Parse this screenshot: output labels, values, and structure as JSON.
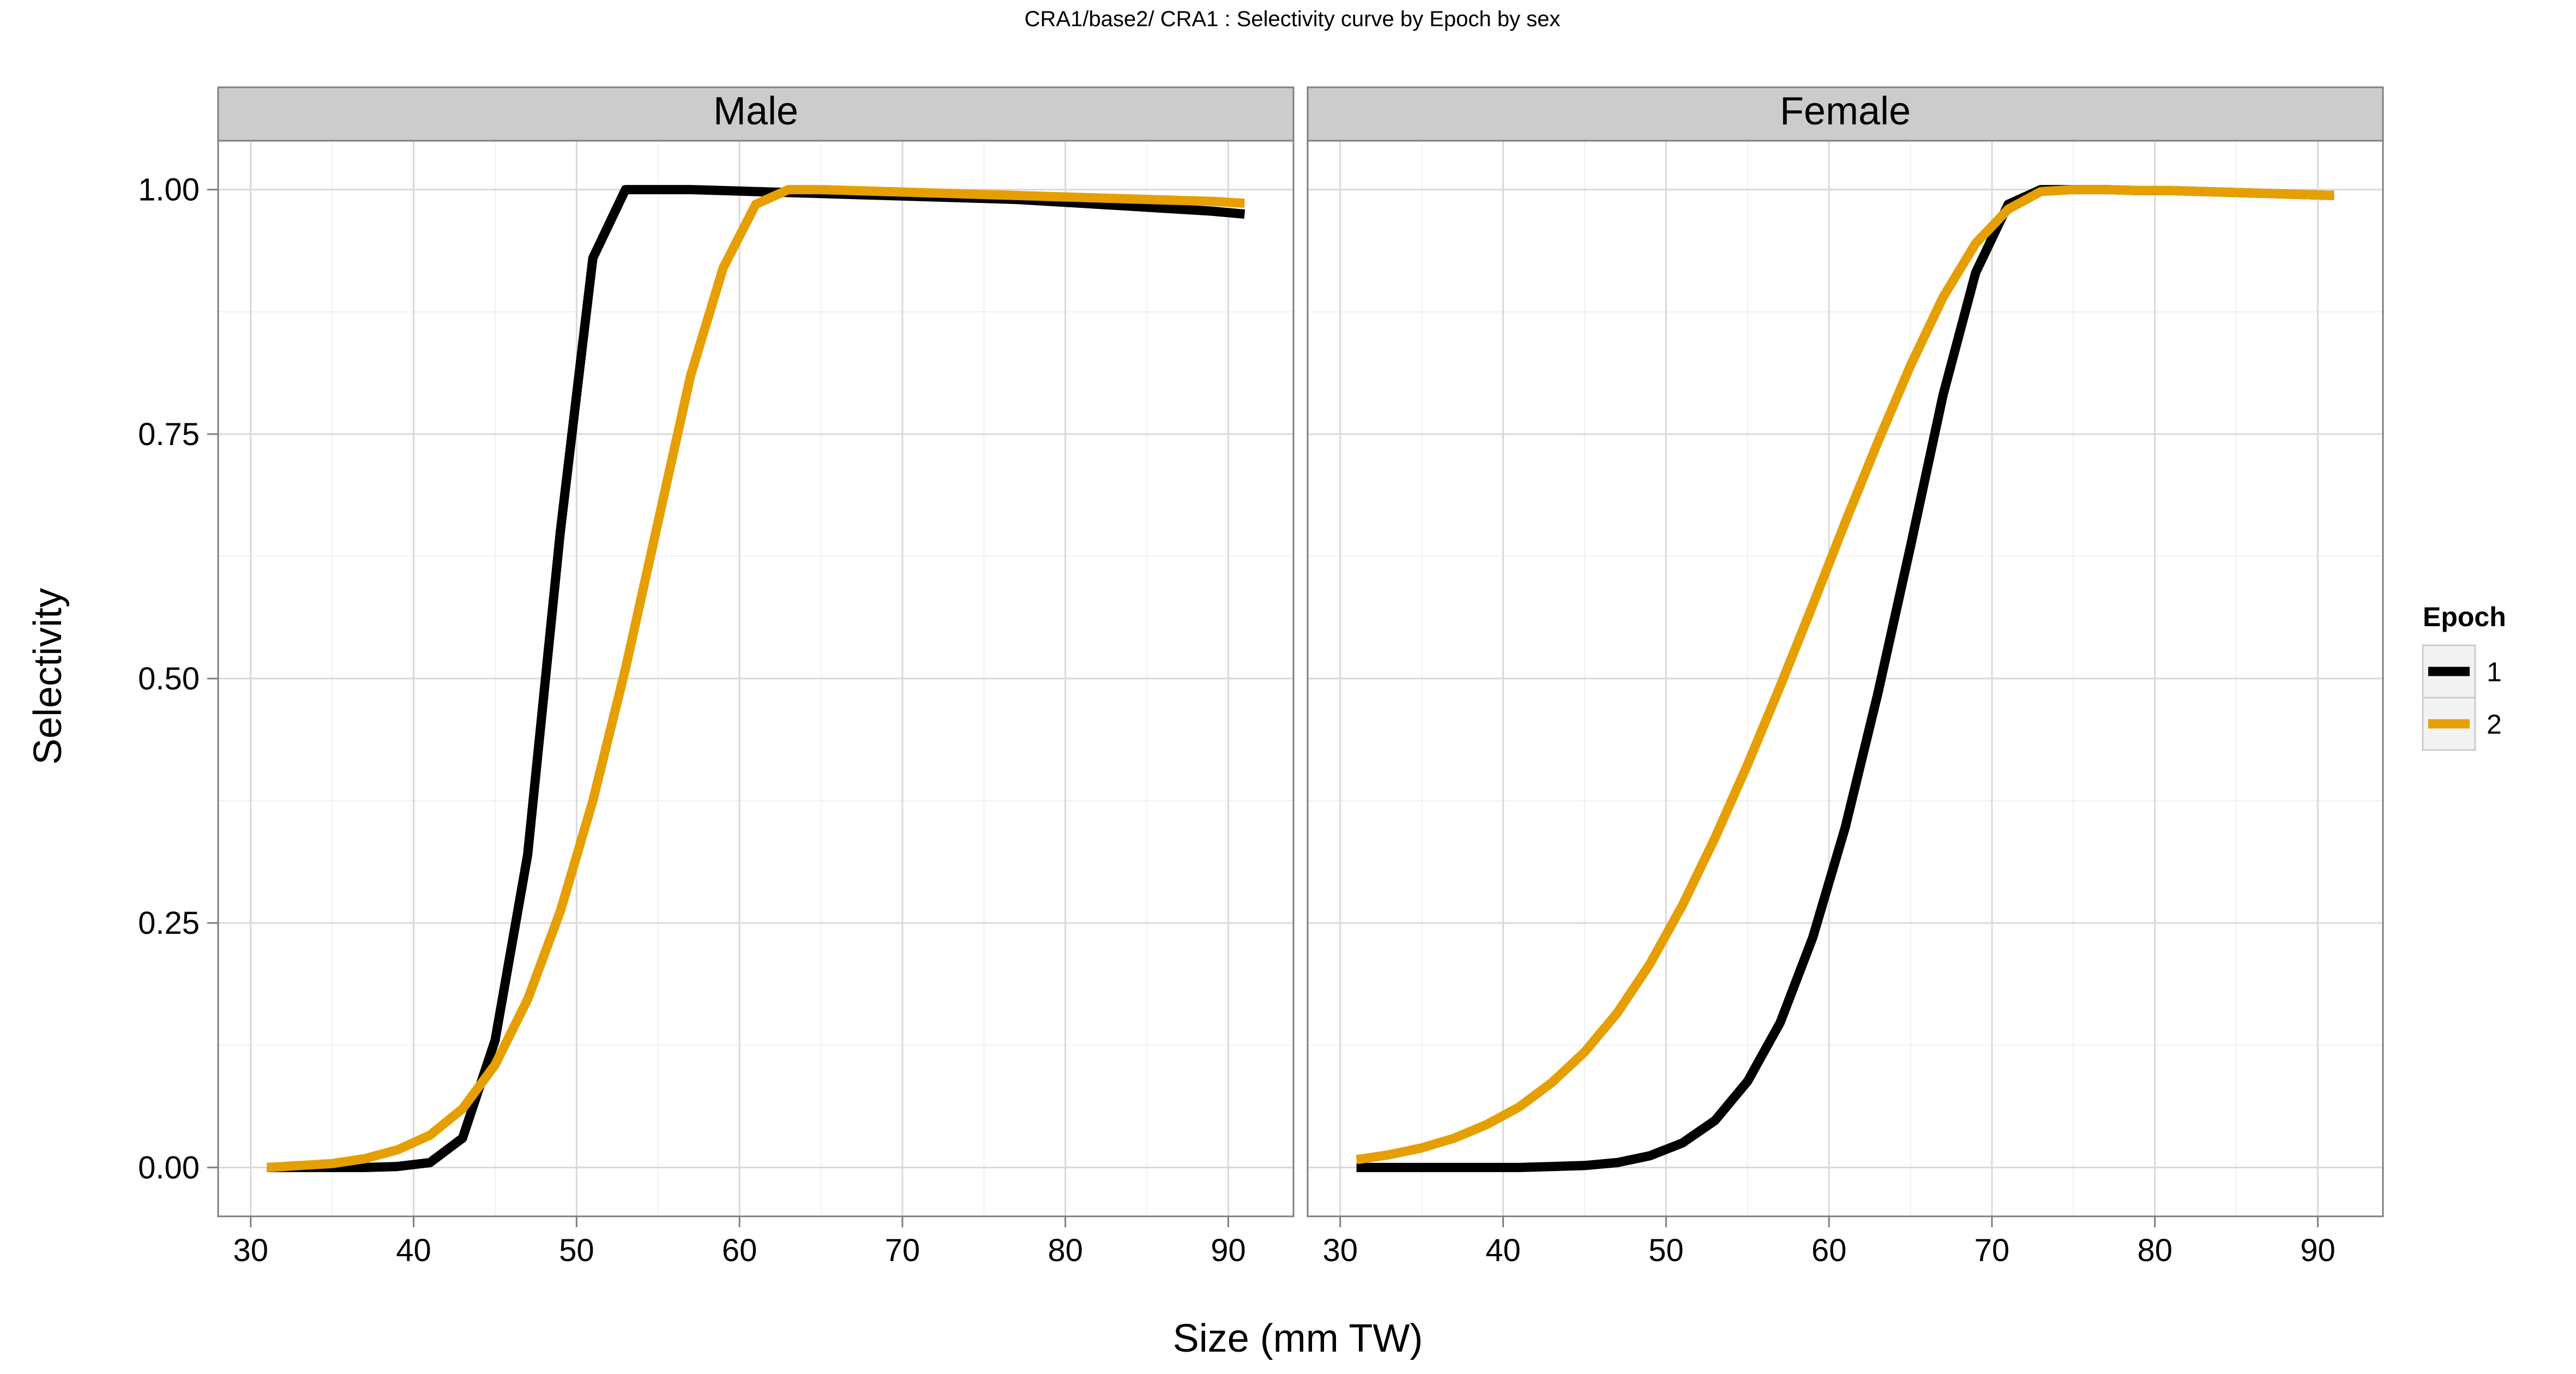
{
  "chart_data": {
    "type": "line",
    "title": "CRA1/base2/   CRA1 : Selectivity curve by Epoch by sex",
    "xlabel": "Size (mm TW)",
    "ylabel": "Selectivity",
    "xlim": [
      28,
      94
    ],
    "ylim": [
      -0.05,
      1.05
    ],
    "x_ticks": [
      30,
      40,
      50,
      60,
      70,
      80,
      90
    ],
    "y_ticks": [
      0.0,
      0.25,
      0.5,
      0.75,
      1.0
    ],
    "x_tick_labels": [
      "30",
      "40",
      "50",
      "60",
      "70",
      "80",
      "90"
    ],
    "y_tick_labels": [
      "0.00",
      "0.25",
      "0.50",
      "0.75",
      "1.00"
    ],
    "grid": true,
    "legend": {
      "title": "Epoch",
      "position": "right",
      "entries": [
        {
          "label": "1",
          "color": "#000000"
        },
        {
          "label": "2",
          "color": "#E69F00"
        }
      ]
    },
    "facets": [
      {
        "name": "Male",
        "series": [
          {
            "name": "1",
            "color": "#000000",
            "x": [
              31,
              33,
              35,
              37,
              39,
              41,
              43,
              45,
              47,
              49,
              51,
              53,
              55,
              57,
              59,
              61,
              63,
              65,
              67,
              69,
              71,
              73,
              75,
              77,
              79,
              81,
              83,
              85,
              87,
              89,
              91
            ],
            "y": [
              0.0,
              0.0,
              0.0,
              0.0,
              0.001,
              0.005,
              0.03,
              0.13,
              0.32,
              0.65,
              0.93,
              1.0,
              1.0,
              1.0,
              0.999,
              0.998,
              0.997,
              0.996,
              0.995,
              0.994,
              0.993,
              0.992,
              0.991,
              0.99,
              0.988,
              0.986,
              0.984,
              0.982,
              0.98,
              0.978,
              0.975
            ]
          },
          {
            "name": "2",
            "color": "#E69F00",
            "x": [
              31,
              33,
              35,
              37,
              39,
              41,
              43,
              45,
              47,
              49,
              51,
              53,
              55,
              57,
              59,
              61,
              63,
              65,
              67,
              69,
              71,
              73,
              75,
              77,
              79,
              81,
              83,
              85,
              87,
              89,
              91
            ],
            "y": [
              0.0,
              0.002,
              0.004,
              0.009,
              0.018,
              0.033,
              0.06,
              0.105,
              0.172,
              0.262,
              0.375,
              0.51,
              0.66,
              0.81,
              0.92,
              0.985,
              1.0,
              1.0,
              0.999,
              0.998,
              0.997,
              0.996,
              0.995,
              0.994,
              0.993,
              0.992,
              0.991,
              0.99,
              0.989,
              0.988,
              0.986
            ]
          }
        ]
      },
      {
        "name": "Female",
        "series": [
          {
            "name": "1",
            "color": "#000000",
            "x": [
              31,
              33,
              35,
              37,
              39,
              41,
              43,
              45,
              47,
              49,
              51,
              53,
              55,
              57,
              59,
              61,
              63,
              65,
              67,
              69,
              71,
              73,
              75,
              77,
              79,
              81,
              83,
              85,
              87,
              89,
              91
            ],
            "y": [
              0.0,
              0.0,
              0.0,
              0.0,
              0.0,
              0.0,
              0.001,
              0.002,
              0.005,
              0.012,
              0.025,
              0.048,
              0.088,
              0.148,
              0.235,
              0.348,
              0.485,
              0.635,
              0.79,
              0.915,
              0.985,
              1.0,
              1.0,
              1.0,
              0.999,
              0.999,
              0.998,
              0.997,
              0.996,
              0.995,
              0.994
            ]
          },
          {
            "name": "2",
            "color": "#E69F00",
            "x": [
              31,
              33,
              35,
              37,
              39,
              41,
              43,
              45,
              47,
              49,
              51,
              53,
              55,
              57,
              59,
              61,
              63,
              65,
              67,
              69,
              71,
              73,
              75,
              77,
              79,
              81,
              83,
              85,
              87,
              89,
              91
            ],
            "y": [
              0.008,
              0.013,
              0.02,
              0.03,
              0.044,
              0.062,
              0.087,
              0.118,
              0.158,
              0.208,
              0.268,
              0.337,
              0.412,
              0.492,
              0.575,
              0.66,
              0.742,
              0.82,
              0.89,
              0.945,
              0.98,
              0.998,
              1.0,
              1.0,
              0.999,
              0.999,
              0.998,
              0.997,
              0.996,
              0.995,
              0.994
            ]
          }
        ]
      }
    ]
  }
}
